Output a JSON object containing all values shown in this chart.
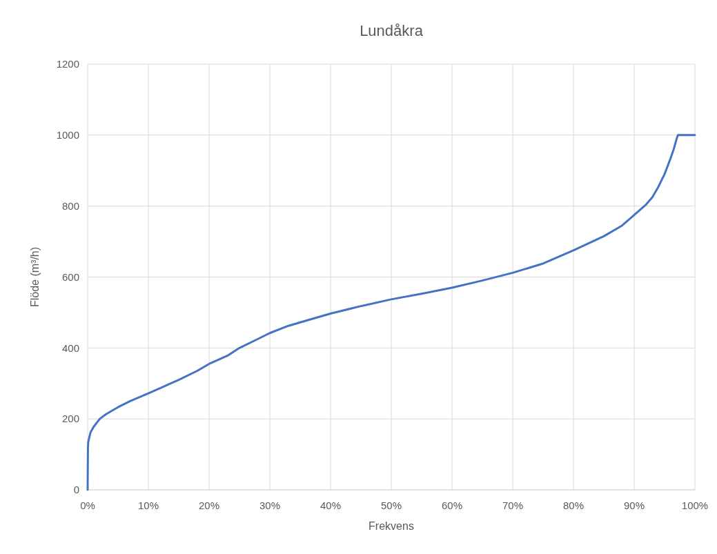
{
  "chart_data": {
    "type": "line",
    "title": "Lundåkra",
    "xlabel": "Frekvens",
    "ylabel": "Flöde (m³/h)",
    "xlim": [
      0,
      100
    ],
    "xticks": [
      {
        "value": 0,
        "label": "0%"
      },
      {
        "value": 10,
        "label": "10%"
      },
      {
        "value": 20,
        "label": "20%"
      },
      {
        "value": 30,
        "label": "30%"
      },
      {
        "value": 40,
        "label": "40%"
      },
      {
        "value": 50,
        "label": "50%"
      },
      {
        "value": 60,
        "label": "60%"
      },
      {
        "value": 70,
        "label": "70%"
      },
      {
        "value": 80,
        "label": "80%"
      },
      {
        "value": 90,
        "label": "90%"
      },
      {
        "value": 100,
        "label": "100%"
      }
    ],
    "ylim": [
      0,
      1200
    ],
    "yticks": [
      0,
      200,
      400,
      600,
      800,
      1000,
      1200
    ],
    "grid": true,
    "marker": "none",
    "line_style": "solid",
    "x": [
      0,
      0.05,
      0.1,
      0.3,
      0.5,
      1,
      2,
      3,
      5,
      7,
      10,
      12,
      15,
      18,
      20,
      23,
      25,
      28,
      30,
      33,
      35,
      40,
      45,
      50,
      55,
      60,
      65,
      70,
      75,
      80,
      85,
      88,
      90,
      92,
      93,
      94,
      95,
      96,
      96.5,
      97,
      97.2,
      100
    ],
    "series": [
      {
        "color": "#4472c4",
        "values": [
          0,
          120,
          135,
          150,
          163,
          178,
          200,
          213,
          233,
          250,
          272,
          287,
          310,
          335,
          355,
          378,
          400,
          425,
          442,
          462,
          472,
          497,
          518,
          537,
          553,
          570,
          590,
          612,
          638,
          675,
          715,
          745,
          775,
          805,
          825,
          855,
          890,
          935,
          960,
          990,
          1000,
          1000
        ]
      }
    ]
  }
}
